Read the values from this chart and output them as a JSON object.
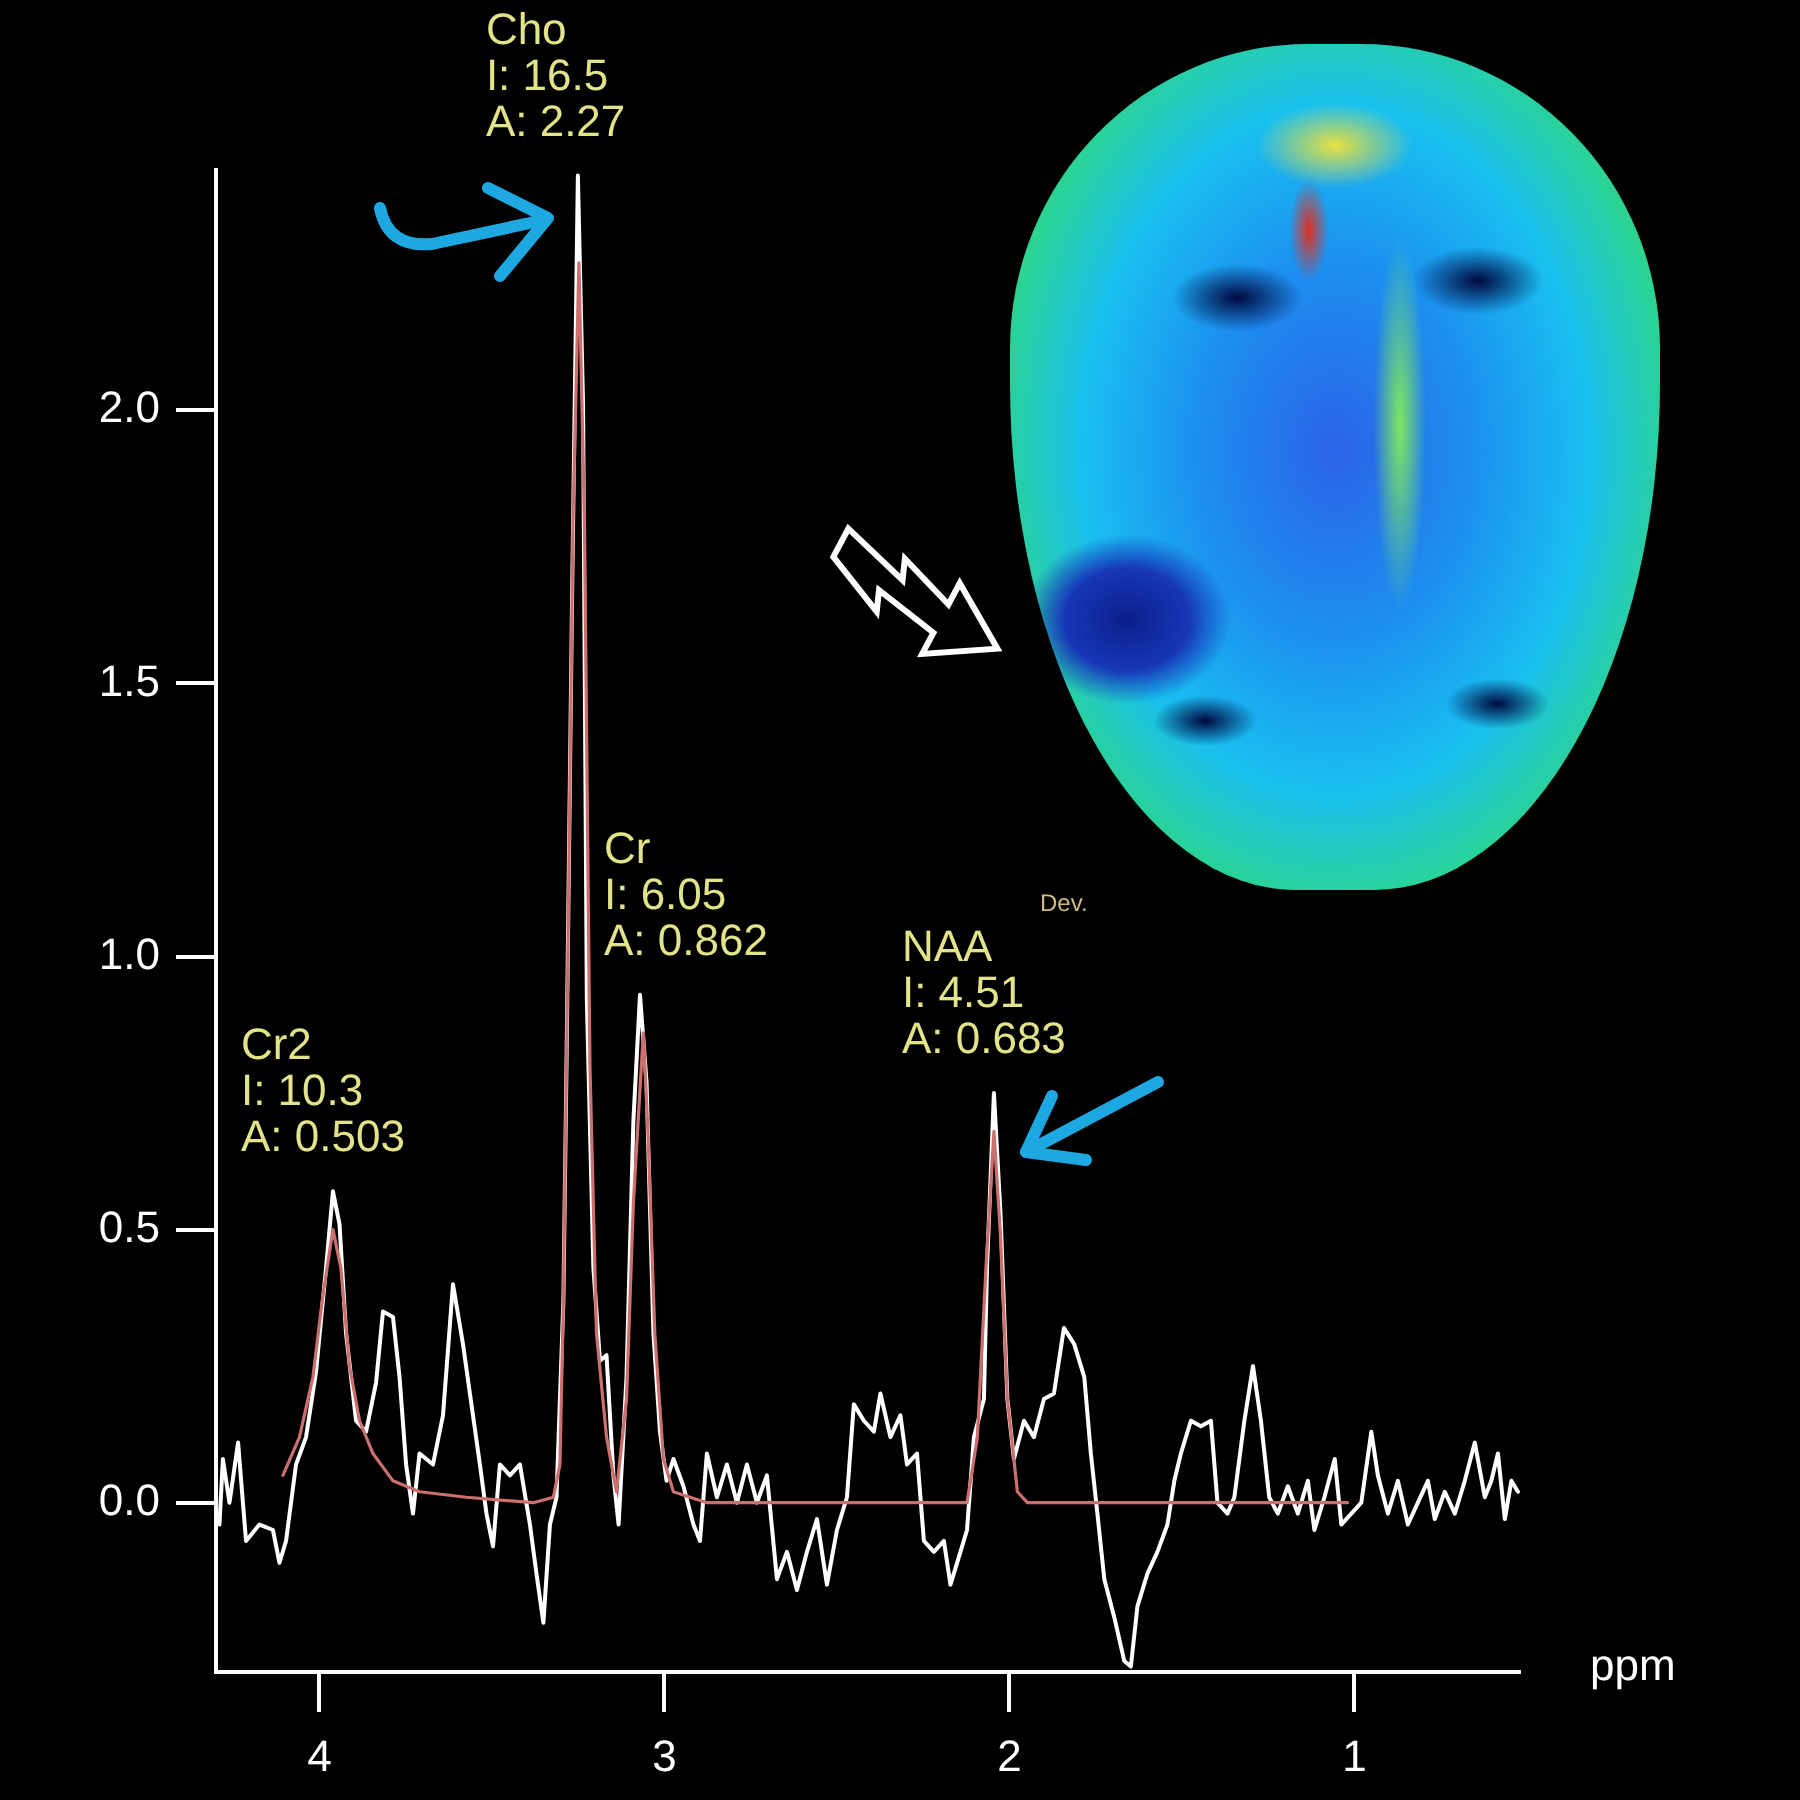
{
  "chart_data": {
    "type": "line",
    "xlabel": "ppm",
    "xlim": [
      4.3,
      0.52
    ],
    "xticks": [
      4,
      3,
      2,
      1
    ],
    "ylim": [
      -0.31,
      2.44
    ],
    "yticks": [
      {
        "value": 0,
        "label": "0.0"
      },
      {
        "value": 0.5,
        "label": "0.5"
      },
      {
        "value": 1,
        "label": "1.0"
      },
      {
        "value": 1.5,
        "label": "1.5"
      },
      {
        "value": 2,
        "label": "2.0"
      }
    ],
    "grid": false,
    "legend": false,
    "marker": "none",
    "line_style": "solid",
    "annotations": [
      {
        "text": "Cr2\nI: 10.3\nA: 0.503",
        "x": 3.961,
        "y": 0.57
      },
      {
        "text": "Cho\nI: 16.5\nA: 2.27",
        "x": 3.251,
        "y": 2.43
      },
      {
        "text": "Cr\nI: 6.05\nA: 0.862",
        "x": 3.071,
        "y": 0.93
      },
      {
        "text": "NAA\nI: 4.51\nA: 0.683",
        "x": 2.045,
        "y": 0.75
      },
      "Dev."
    ],
    "series": [
      {
        "color": "#ffffff",
        "x": [
          4.29,
          4.28,
          4.261,
          4.236,
          4.213,
          4.174,
          4.135,
          4.116,
          4.097,
          4.068,
          4.039,
          4.01,
          3.981,
          3.961,
          3.942,
          3.923,
          3.894,
          3.865,
          3.836,
          3.816,
          3.787,
          3.768,
          3.749,
          3.729,
          3.71,
          3.671,
          3.642,
          3.613,
          3.584,
          3.564,
          3.535,
          3.516,
          3.497,
          3.477,
          3.448,
          3.419,
          3.39,
          3.371,
          3.351,
          3.332,
          3.313,
          3.293,
          3.284,
          3.268,
          3.251,
          3.236,
          3.225,
          3.206,
          3.187,
          3.168,
          3.148,
          3.133,
          3.11,
          3.09,
          3.071,
          3.052,
          3.032,
          3.013,
          2.994,
          2.974,
          2.945,
          2.916,
          2.897,
          2.877,
          2.848,
          2.819,
          2.79,
          2.761,
          2.732,
          2.703,
          2.674,
          2.645,
          2.616,
          2.587,
          2.558,
          2.529,
          2.5,
          2.471,
          2.451,
          2.422,
          2.393,
          2.374,
          2.345,
          2.316,
          2.297,
          2.268,
          2.248,
          2.219,
          2.19,
          2.171,
          2.142,
          2.123,
          2.103,
          2.074,
          2.065,
          2.045,
          2.026,
          2.006,
          1.987,
          1.958,
          1.929,
          1.9,
          1.871,
          1.842,
          1.812,
          1.783,
          1.764,
          1.745,
          1.725,
          1.696,
          1.667,
          1.648,
          1.629,
          1.6,
          1.571,
          1.542,
          1.522,
          1.503,
          1.474,
          1.445,
          1.416,
          1.397,
          1.368,
          1.348,
          1.319,
          1.294,
          1.271,
          1.247,
          1.222,
          1.193,
          1.164,
          1.135,
          1.116,
          1.087,
          1.057,
          1.038,
          1.009,
          0.98,
          0.951,
          0.932,
          0.903,
          0.874,
          0.845,
          0.816,
          0.787,
          0.767,
          0.738,
          0.709,
          0.68,
          0.651,
          0.622,
          0.603,
          0.584,
          0.564,
          0.545,
          0.526
        ],
        "values": [
          -0.04,
          0.08,
          0,
          0.11,
          -0.07,
          -0.04,
          -0.05,
          -0.11,
          -0.07,
          0.07,
          0.12,
          0.24,
          0.43,
          0.57,
          0.51,
          0.31,
          0.15,
          0.13,
          0.22,
          0.35,
          0.34,
          0.23,
          0.07,
          -0.02,
          0.09,
          0.07,
          0.16,
          0.4,
          0.29,
          0.2,
          0.07,
          -0.02,
          -0.08,
          0.07,
          0.05,
          0.07,
          -0.04,
          -0.13,
          -0.22,
          -0.04,
          0.01,
          0.37,
          0.8,
          1.65,
          2.43,
          2.01,
          0.92,
          0.43,
          0.26,
          0.27,
          0.05,
          -0.04,
          0.23,
          0.7,
          0.93,
          0.77,
          0.31,
          0.13,
          0.04,
          0.08,
          0.03,
          -0.04,
          -0.07,
          0.09,
          0.01,
          0.07,
          0,
          0.07,
          0,
          0.05,
          -0.14,
          -0.09,
          -0.16,
          -0.09,
          -0.03,
          -0.15,
          -0.05,
          0.01,
          0.18,
          0.15,
          0.13,
          0.2,
          0.12,
          0.16,
          0.07,
          0.09,
          -0.07,
          -0.09,
          -0.07,
          -0.15,
          -0.09,
          -0.05,
          0.12,
          0.19,
          0.43,
          0.75,
          0.53,
          0.19,
          0.08,
          0.15,
          0.12,
          0.19,
          0.2,
          0.32,
          0.29,
          0.23,
          0.09,
          -0.02,
          -0.14,
          -0.21,
          -0.29,
          -0.3,
          -0.19,
          -0.13,
          -0.09,
          -0.04,
          0.04,
          0.09,
          0.15,
          0.14,
          0.15,
          0,
          -0.02,
          0.01,
          0.15,
          0.25,
          0.15,
          0.01,
          -0.02,
          0.03,
          -0.02,
          0.04,
          -0.05,
          0.01,
          0.08,
          -0.04,
          -0.02,
          0,
          0.13,
          0.05,
          -0.02,
          0.04,
          -0.04,
          0,
          0.04,
          -0.03,
          0.02,
          -0.02,
          0.04,
          0.11,
          0.01,
          0.04,
          0.09,
          -0.03,
          0.04,
          0.02
        ]
      },
      {
        "color": "#cc6f6f",
        "x": [
          4.106,
          4.058,
          4.019,
          3.99,
          3.961,
          3.938,
          3.913,
          3.884,
          3.845,
          3.787,
          3.71,
          3.574,
          3.38,
          3.322,
          3.303,
          3.293,
          3.28,
          3.265,
          3.248,
          3.232,
          3.216,
          3.197,
          3.168,
          3.139,
          3.11,
          3.09,
          3.067,
          3.061,
          3.048,
          3.028,
          3.003,
          2.974,
          2.877,
          2.123,
          2.093,
          2.068,
          2.045,
          2.026,
          2.006,
          1.977,
          1.948,
          1.02
        ],
        "values": [
          0.05,
          0.12,
          0.23,
          0.38,
          0.5,
          0.43,
          0.25,
          0.15,
          0.09,
          0.04,
          0.02,
          0.01,
          0,
          0.01,
          0.07,
          0.37,
          1,
          1.8,
          2.27,
          1.8,
          0.8,
          0.31,
          0.12,
          0.02,
          0.19,
          0.55,
          0.8,
          0.86,
          0.68,
          0.31,
          0.08,
          0.02,
          0,
          0,
          0.12,
          0.43,
          0.68,
          0.49,
          0.19,
          0.02,
          0,
          0
        ]
      }
    ]
  }
}
